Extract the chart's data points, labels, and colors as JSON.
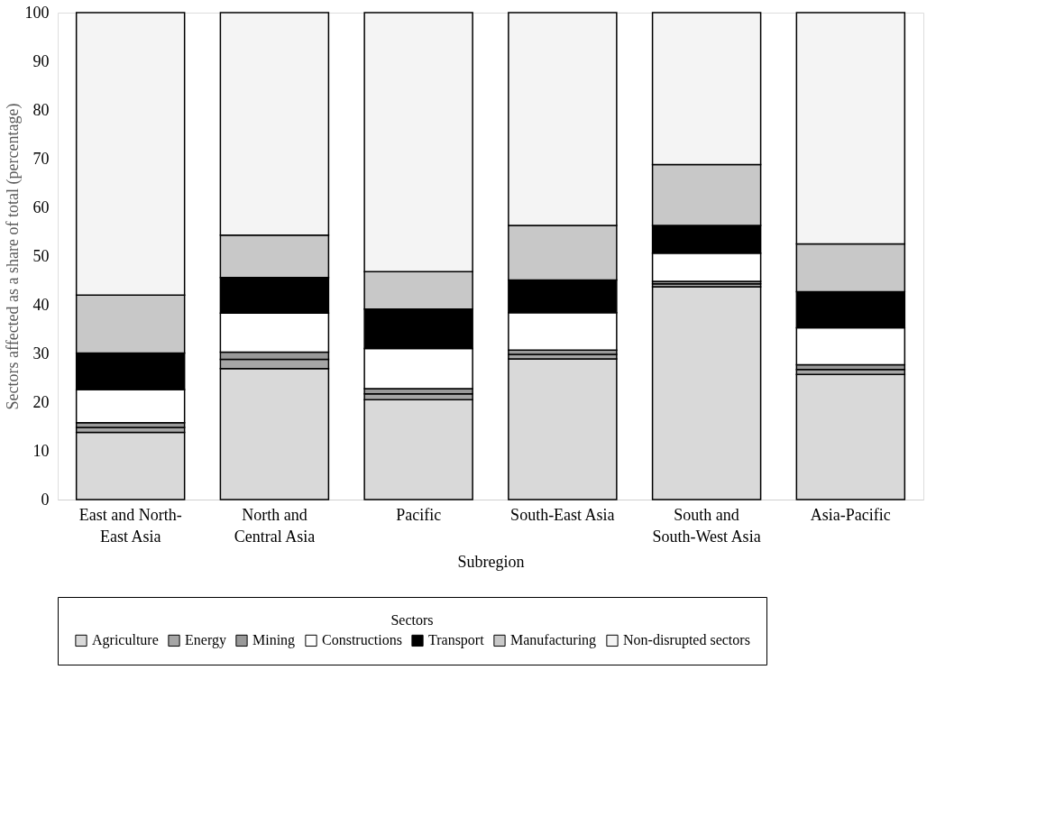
{
  "chart_data": {
    "type": "bar",
    "stacked": true,
    "categories": [
      "East and North-East Asia",
      "North and Central Asia",
      "Pacific",
      "South-East Asia",
      "South and South-West Asia",
      "Asia-Pacific"
    ],
    "xlabel": "Subregion",
    "ylabel": "Sectors affected as a share of total (percentage)",
    "legend_title": "Sectors",
    "ylim": [
      0,
      100
    ],
    "yticks": [
      0,
      10,
      20,
      30,
      40,
      50,
      60,
      70,
      80,
      90,
      100
    ],
    "grid": false,
    "legend": "bottom",
    "series": [
      {
        "name": "Agriculture",
        "color": "#d9d9d9",
        "values": [
          13.8,
          26.9,
          20.5,
          28.9,
          43.7,
          25.7
        ]
      },
      {
        "name": "Energy",
        "color": "#a6a6a6",
        "values": [
          1.0,
          1.9,
          1.2,
          0.9,
          0.6,
          1.0
        ]
      },
      {
        "name": "Mining",
        "color": "#999999",
        "values": [
          1.0,
          1.5,
          1.1,
          0.9,
          0.5,
          1.0
        ]
      },
      {
        "name": "Constructions",
        "color": "#ffffff",
        "values": [
          6.8,
          8.0,
          8.2,
          7.7,
          5.8,
          7.6
        ]
      },
      {
        "name": "Transport",
        "color": "#000000",
        "values": [
          7.5,
          7.3,
          8.1,
          6.7,
          5.7,
          7.4
        ]
      },
      {
        "name": "Manufacturing",
        "color": "#c8c8c8",
        "values": [
          11.9,
          8.7,
          7.7,
          11.2,
          12.5,
          9.8
        ]
      },
      {
        "name": "Non-disrupted sectors",
        "color": "#f4f4f4",
        "values": [
          58.0,
          45.7,
          53.2,
          43.7,
          31.2,
          47.5
        ]
      }
    ]
  }
}
